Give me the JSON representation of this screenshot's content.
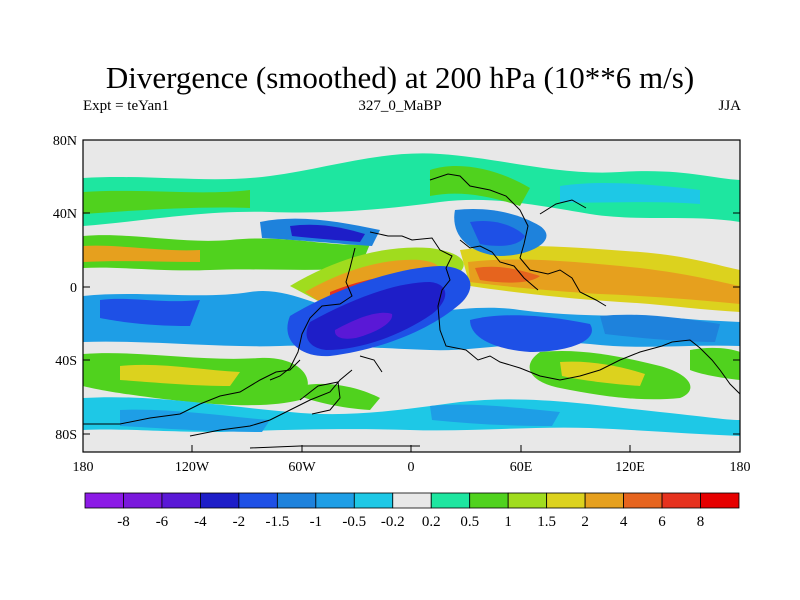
{
  "title": "Divergence (smoothed) at 200 hPa (10**6 m/s)",
  "left_label": "Expt = teYan1",
  "center_label": "327_0_MaBP",
  "right_label": "JJA",
  "lat_ticks": [
    "80N",
    "40N",
    "0",
    "40S",
    "80S"
  ],
  "lon_ticks": [
    "180",
    "120W",
    "60W",
    "0",
    "60E",
    "120E",
    "180"
  ],
  "colorbar": {
    "levels": [
      "-8",
      "-6",
      "-4",
      "-2",
      "-1.5",
      "-1",
      "-0.5",
      "-0.2",
      "0.2",
      "0.5",
      "1",
      "1.5",
      "2",
      "4",
      "6",
      "8"
    ],
    "colors": [
      "#8c1ae6",
      "#7a18dc",
      "#5a18d6",
      "#1e1ec8",
      "#1e50e6",
      "#1e82dc",
      "#1e9ee6",
      "#1ec8e6",
      "#e8e8e8",
      "#1ee6a0",
      "#50d21e",
      "#a0dc1e",
      "#dcd21e",
      "#e6a01e",
      "#e6641e",
      "#e6321e",
      "#e60000"
    ]
  },
  "colors": {
    "land_outline": "#000000",
    "background_missing": "#e8e8e8"
  }
}
